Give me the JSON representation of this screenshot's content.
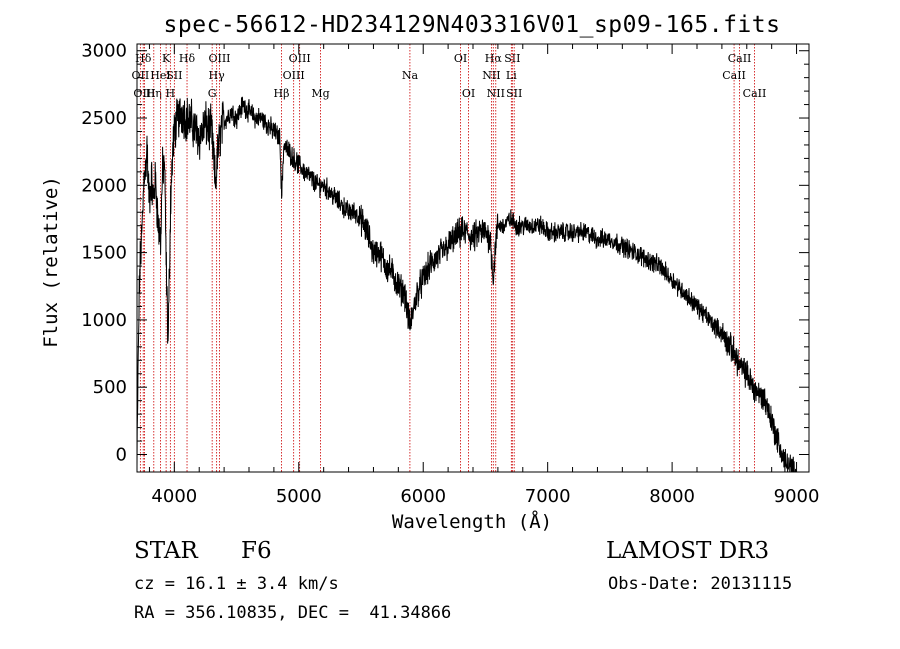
{
  "chart_data": {
    "type": "line",
    "title": "spec-56612-HD234129N403316V01_sp09-165.fits",
    "xlabel": "Wavelength (Å)",
    "ylabel": "Flux (relative)",
    "xlim": [
      3700,
      9100
    ],
    "ylim": [
      -130,
      3050
    ],
    "xticks": [
      4000,
      5000,
      6000,
      7000,
      8000,
      9000
    ],
    "yticks": [
      0,
      500,
      1000,
      1500,
      2000,
      2500,
      3000
    ],
    "grid": false,
    "series": [
      {
        "name": "flux",
        "x": [
          3700,
          3710,
          3720,
          3730,
          3740,
          3750,
          3760,
          3770,
          3780,
          3790,
          3800,
          3815,
          3830,
          3850,
          3870,
          3890,
          3905,
          3920,
          3935,
          3950,
          3970,
          3990,
          4010,
          4030,
          4060,
          4100,
          4150,
          4200,
          4250,
          4300,
          4330,
          4350,
          4380,
          4420,
          4460,
          4500,
          4550,
          4600,
          4650,
          4700,
          4750,
          4800,
          4850,
          4861,
          4880,
          4920,
          4960,
          5000,
          5050,
          5100,
          5150,
          5200,
          5250,
          5300,
          5350,
          5400,
          5450,
          5500,
          5550,
          5600,
          5650,
          5700,
          5750,
          5800,
          5850,
          5893,
          5950,
          6000,
          6050,
          6100,
          6150,
          6200,
          6250,
          6300,
          6350,
          6400,
          6450,
          6500,
          6540,
          6563,
          6580,
          6600,
          6650,
          6700,
          6750,
          6800,
          6850,
          6900,
          6950,
          7000,
          7100,
          7200,
          7300,
          7400,
          7500,
          7600,
          7700,
          7800,
          7900,
          8000,
          8100,
          8200,
          8300,
          8400,
          8500,
          8550,
          8600,
          8650,
          8700,
          8750,
          8800,
          8850,
          8900,
          8950,
          9000
        ],
        "values": [
          -100,
          700,
          1300,
          1500,
          1650,
          1900,
          2150,
          2100,
          2300,
          2000,
          1900,
          2050,
          1900,
          2050,
          1700,
          1600,
          2100,
          2200,
          1400,
          800,
          1900,
          2300,
          2450,
          2500,
          2550,
          2500,
          2450,
          2350,
          2450,
          2400,
          2000,
          2250,
          2450,
          2500,
          2550,
          2500,
          2600,
          2550,
          2500,
          2500,
          2450,
          2400,
          2350,
          1900,
          2300,
          2250,
          2200,
          2150,
          2100,
          2050,
          2000,
          2000,
          1950,
          1900,
          1850,
          1800,
          1800,
          1750,
          1650,
          1500,
          1500,
          1400,
          1350,
          1250,
          1200,
          950,
          1200,
          1300,
          1400,
          1450,
          1500,
          1550,
          1600,
          1650,
          1650,
          1600,
          1650,
          1650,
          1600,
          1300,
          1550,
          1700,
          1700,
          1750,
          1700,
          1700,
          1700,
          1700,
          1700,
          1650,
          1650,
          1650,
          1650,
          1600,
          1600,
          1550,
          1500,
          1450,
          1400,
          1300,
          1200,
          1100,
          1000,
          900,
          750,
          650,
          600,
          500,
          450,
          400,
          250,
          100,
          -50,
          -100,
          -150
        ]
      }
    ],
    "lines": [
      {
        "label": "Hδ",
        "x": 3750,
        "row": 1
      },
      {
        "label": "OII",
        "x": 3727,
        "row": 2
      },
      {
        "label": "OIII",
        "x": 3760,
        "row": 3
      },
      {
        "label": "Hη",
        "x": 3835,
        "row": 3
      },
      {
        "label": "K",
        "x": 3934,
        "row": 1
      },
      {
        "label": "HeI",
        "x": 3889,
        "row": 2
      },
      {
        "label": "SII",
        "x": 4000,
        "row": 2
      },
      {
        "label": "H",
        "x": 3968,
        "row": 3
      },
      {
        "label": "Hδ",
        "x": 4102,
        "row": 1
      },
      {
        "label": "OIII",
        "x": 4363,
        "row": 1
      },
      {
        "label": "Hγ",
        "x": 4340,
        "row": 2
      },
      {
        "label": "G",
        "x": 4304,
        "row": 3
      },
      {
        "label": "Hβ",
        "x": 4861,
        "row": 3
      },
      {
        "label": "OIII",
        "x": 5007,
        "row": 1
      },
      {
        "label": "OIII",
        "x": 4959,
        "row": 2
      },
      {
        "label": "Mg",
        "x": 5175,
        "row": 3
      },
      {
        "label": "Na",
        "x": 5893,
        "row": 2
      },
      {
        "label": "OI",
        "x": 6300,
        "row": 1
      },
      {
        "label": "OI",
        "x": 6364,
        "row": 3
      },
      {
        "label": "Hα",
        "x": 6563,
        "row": 1
      },
      {
        "label": "SII",
        "x": 6716,
        "row": 1
      },
      {
        "label": "NII",
        "x": 6548,
        "row": 2
      },
      {
        "label": "Li",
        "x": 6708,
        "row": 2
      },
      {
        "label": "NII",
        "x": 6583,
        "row": 3
      },
      {
        "label": "SII",
        "x": 6731,
        "row": 3
      },
      {
        "label": "CaII",
        "x": 8542,
        "row": 1
      },
      {
        "label": "CaII",
        "x": 8498,
        "row": 2
      },
      {
        "label": "CaII",
        "x": 8662,
        "row": 3
      }
    ]
  },
  "info": {
    "object_class": "STAR",
    "subclass": "F6",
    "survey": "LAMOST DR3",
    "cz": "cz = 16.1 ± 3.4 km/s",
    "obs_date": "Obs-Date: 20131115",
    "coords": "RA = 356.10835, DEC =  41.34866"
  }
}
